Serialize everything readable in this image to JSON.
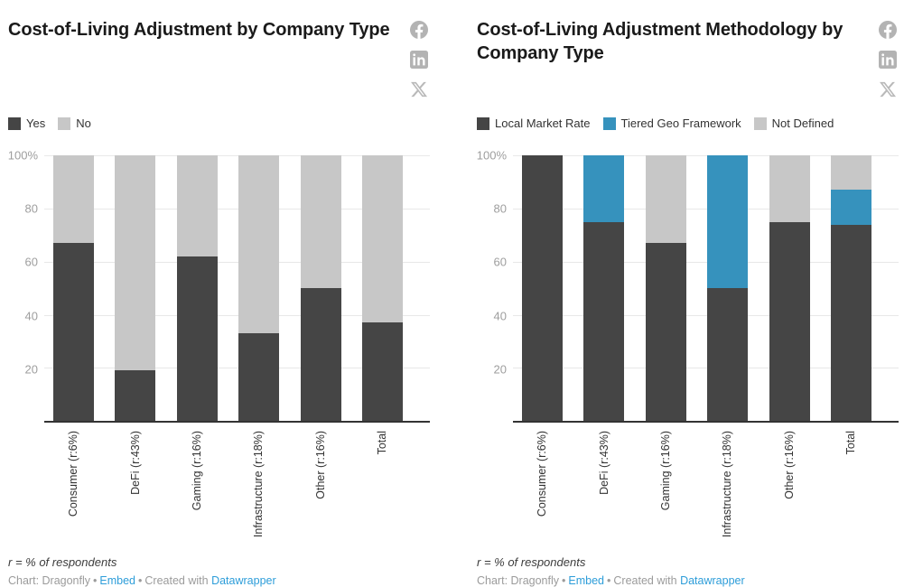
{
  "page": {
    "background": "#ffffff"
  },
  "charts": [
    {
      "title": "Cost-of-Living Adjustment by Company Type",
      "footnote": "r = % of respondents",
      "credit": {
        "source": "Chart: Dragonfly",
        "separator": "•",
        "embed_label": "Embed",
        "created_with": "Created with",
        "tool_label": "Datawrapper"
      },
      "social_icons": [
        "facebook-icon",
        "linkedin-icon",
        "x-icon"
      ]
    },
    {
      "title": "Cost-of-Living Adjustment Methodology by Company Type",
      "footnote": "r = % of respondents",
      "credit": {
        "source": "Chart: Dragonfly",
        "separator": "•",
        "embed_label": "Embed",
        "created_with": "Created with",
        "tool_label": "Datawrapper"
      },
      "social_icons": [
        "facebook-icon",
        "linkedin-icon",
        "x-icon"
      ]
    }
  ],
  "colors": {
    "bar_dark": "#454545",
    "bar_blue": "#3692bd",
    "bar_gray": "#c7c7c7",
    "gridline": "#e8e8e8",
    "axis": "#333333",
    "tick_text": "#9e9e9e",
    "link_blue": "#2d9dd9",
    "icon_gray": "#b3b3b3"
  },
  "chart_data": [
    {
      "type": "bar",
      "stacked": true,
      "title": "Cost-of-Living Adjustment by Company Type",
      "categories": [
        "Consumer (r:6%)",
        "DeFi (r:43%)",
        "Gaming (r:16%)",
        "Infrastructure (r:18%)",
        "Other (r:16%)",
        "Total"
      ],
      "series": [
        {
          "name": "Yes",
          "color": "#454545",
          "values": [
            67,
            19,
            62,
            33,
            50,
            37
          ]
        },
        {
          "name": "No",
          "color": "#c7c7c7",
          "values": [
            33,
            81,
            38,
            67,
            50,
            63
          ]
        }
      ],
      "xlabel": "",
      "ylabel": "",
      "unit": "%",
      "ylim": [
        0,
        100
      ],
      "yticks": [
        "100%",
        "80",
        "60",
        "40",
        "20"
      ],
      "grid": true,
      "legend_position": "top",
      "x_label_rotation": -90
    },
    {
      "type": "bar",
      "stacked": true,
      "title": "Cost-of-Living Adjustment Methodology by Company Type",
      "categories": [
        "Consumer (r:6%)",
        "DeFi (r:43%)",
        "Gaming (r:16%)",
        "Infrastructure (r:18%)",
        "Other (r:16%)",
        "Total"
      ],
      "series": [
        {
          "name": "Local Market Rate",
          "color": "#454545",
          "values": [
            100,
            75,
            67,
            50,
            75,
            74
          ]
        },
        {
          "name": "Tiered Geo Framework",
          "color": "#3692bd",
          "values": [
            0,
            25,
            0,
            50,
            0,
            13
          ]
        },
        {
          "name": "Not Defined",
          "color": "#c7c7c7",
          "values": [
            0,
            0,
            33,
            0,
            25,
            13
          ]
        }
      ],
      "xlabel": "",
      "ylabel": "",
      "unit": "%",
      "ylim": [
        0,
        100
      ],
      "yticks": [
        "100%",
        "80",
        "60",
        "40",
        "20"
      ],
      "grid": true,
      "legend_position": "top",
      "x_label_rotation": -90
    }
  ]
}
